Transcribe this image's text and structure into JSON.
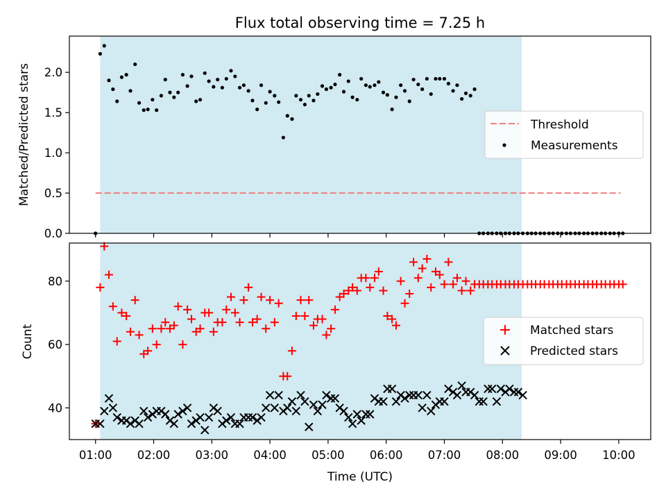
{
  "chart_data": [
    {
      "type": "scatter",
      "title": "Flux total observing time = 7.25 h",
      "xlabel": "",
      "ylabel": "Matched/Predicted stars",
      "ylim": [
        0,
        2.45
      ],
      "yticks": [
        "0.0",
        "0.5",
        "1.0",
        "1.5",
        "2.0"
      ],
      "ytick_values": [
        0,
        0.5,
        1.0,
        1.5,
        2.0
      ],
      "shaded_span_hours": [
        1.08,
        8.33
      ],
      "shade_color": "#add8e6",
      "threshold": {
        "name": "Threshold",
        "value": 0.5,
        "x_range": [
          1.0,
          10.03
        ],
        "color": "#f08080"
      },
      "legend": {
        "placement": "center-right",
        "entries": [
          "Threshold",
          "Measurements"
        ]
      },
      "series": [
        {
          "name": "Measurements",
          "color": "#000000",
          "x": [
            1.0,
            1.08,
            1.15,
            1.23,
            1.3,
            1.37,
            1.45,
            1.53,
            1.6,
            1.68,
            1.75,
            1.83,
            1.9,
            1.98,
            2.05,
            2.13,
            2.2,
            2.28,
            2.35,
            2.42,
            2.5,
            2.58,
            2.65,
            2.73,
            2.8,
            2.88,
            2.95,
            3.03,
            3.1,
            3.18,
            3.25,
            3.33,
            3.4,
            3.48,
            3.55,
            3.63,
            3.7,
            3.78,
            3.85,
            3.93,
            4.0,
            4.08,
            4.15,
            4.23,
            4.3,
            4.38,
            4.45,
            4.53,
            4.6,
            4.67,
            4.75,
            4.82,
            4.9,
            4.97,
            5.05,
            5.12,
            5.2,
            5.27,
            5.35,
            5.42,
            5.5,
            5.57,
            5.65,
            5.72,
            5.8,
            5.87,
            5.95,
            6.02,
            6.1,
            6.17,
            6.25,
            6.32,
            6.4,
            6.47,
            6.55,
            6.62,
            6.7,
            6.77,
            6.85,
            6.92,
            7.0,
            7.07,
            7.15,
            7.22,
            7.3,
            7.37,
            7.45,
            7.52,
            7.6,
            7.67,
            7.75,
            7.82,
            7.9,
            7.97,
            8.05,
            8.12,
            8.2,
            8.27,
            8.35,
            8.43,
            8.5,
            8.57,
            8.65,
            8.72,
            8.8,
            8.87,
            8.95,
            9.02,
            9.1,
            9.17,
            9.25,
            9.32,
            9.4,
            9.47,
            9.55,
            9.62,
            9.7,
            9.77,
            9.85,
            9.92,
            10.0,
            10.07
          ],
          "values": [
            0.0,
            2.23,
            2.33,
            1.9,
            1.79,
            1.64,
            1.94,
            1.97,
            1.77,
            2.1,
            1.62,
            1.53,
            1.54,
            1.66,
            1.53,
            1.71,
            1.91,
            1.75,
            1.69,
            1.75,
            1.97,
            1.83,
            1.95,
            1.64,
            1.66,
            1.99,
            1.89,
            1.82,
            1.91,
            1.81,
            1.92,
            2.02,
            1.95,
            1.81,
            1.84,
            1.77,
            1.65,
            1.54,
            1.84,
            1.62,
            1.76,
            1.71,
            1.63,
            1.19,
            1.46,
            1.42,
            1.71,
            1.66,
            1.6,
            1.71,
            1.65,
            1.73,
            1.83,
            1.79,
            1.81,
            1.85,
            1.97,
            1.76,
            1.89,
            1.69,
            1.66,
            1.92,
            1.84,
            1.82,
            1.84,
            1.88,
            1.75,
            1.72,
            1.54,
            1.69,
            1.84,
            1.77,
            1.64,
            1.91,
            1.85,
            1.79,
            1.92,
            1.73,
            1.92,
            1.92,
            1.92,
            1.86,
            1.77,
            1.84,
            1.67,
            1.74,
            1.71,
            1.79,
            0.0,
            0.0,
            0.0,
            0.0,
            0.0,
            0.0,
            0.0,
            0.0,
            0.0,
            0.0,
            0.0,
            0.0,
            0.0,
            0.0,
            0.0,
            0.0,
            0.0,
            0.0,
            0.0,
            0.0,
            0.0,
            0.0,
            0.0,
            0.0,
            0.0,
            0.0,
            0.0,
            0.0,
            0.0,
            0.0,
            0.0,
            0.0,
            0.0,
            0.0
          ]
        }
      ]
    },
    {
      "type": "scatter",
      "title": "",
      "xlabel": "Time (UTC)",
      "ylabel": "Count",
      "ylim": [
        30,
        92
      ],
      "xlim": [
        0.55,
        10.55
      ],
      "yticks": [
        "40",
        "60",
        "80"
      ],
      "ytick_values": [
        40,
        60,
        80
      ],
      "xticks": [
        "01:00",
        "02:00",
        "03:00",
        "04:00",
        "05:00",
        "06:00",
        "07:00",
        "08:00",
        "09:00",
        "10:00"
      ],
      "xtick_values": [
        1,
        2,
        3,
        4,
        5,
        6,
        7,
        8,
        9,
        10
      ],
      "shaded_span_hours": [
        1.08,
        8.33
      ],
      "shade_color": "#add8e6",
      "legend": {
        "placement": "center-right",
        "entries": [
          "Matched stars",
          "Predicted stars"
        ]
      },
      "series": [
        {
          "name": "Matched stars",
          "marker": "plus",
          "color": "#ff0000",
          "x": [
            1.0,
            1.08,
            1.15,
            1.23,
            1.3,
            1.37,
            1.45,
            1.53,
            1.6,
            1.68,
            1.75,
            1.83,
            1.9,
            1.98,
            2.05,
            2.13,
            2.2,
            2.28,
            2.35,
            2.42,
            2.5,
            2.58,
            2.65,
            2.73,
            2.8,
            2.88,
            2.95,
            3.03,
            3.1,
            3.18,
            3.25,
            3.33,
            3.4,
            3.48,
            3.55,
            3.63,
            3.7,
            3.78,
            3.85,
            3.93,
            4.0,
            4.08,
            4.15,
            4.23,
            4.3,
            4.38,
            4.45,
            4.53,
            4.6,
            4.67,
            4.75,
            4.82,
            4.9,
            4.97,
            5.05,
            5.12,
            5.2,
            5.27,
            5.35,
            5.42,
            5.5,
            5.57,
            5.65,
            5.72,
            5.8,
            5.87,
            5.95,
            6.02,
            6.1,
            6.17,
            6.25,
            6.32,
            6.4,
            6.47,
            6.55,
            6.62,
            6.7,
            6.77,
            6.85,
            6.92,
            7.0,
            7.07,
            7.15,
            7.22,
            7.3,
            7.37,
            7.45,
            7.52,
            7.6,
            7.67,
            7.75,
            7.82,
            7.9,
            7.97,
            8.05,
            8.12,
            8.2,
            8.27,
            8.35,
            8.43,
            8.5,
            8.57,
            8.65,
            8.72,
            8.8,
            8.87,
            8.95,
            9.02,
            9.1,
            9.17,
            9.25,
            9.32,
            9.4,
            9.47,
            9.55,
            9.62,
            9.7,
            9.77,
            9.85,
            9.92,
            10.0,
            10.07
          ],
          "values": [
            35,
            78,
            91,
            82,
            72,
            61,
            70,
            69,
            64,
            74,
            63,
            57,
            58,
            65,
            60,
            65,
            67,
            65,
            66,
            72,
            60,
            71,
            68,
            64,
            65,
            70,
            70,
            64,
            67,
            67,
            71,
            75,
            70,
            67,
            74,
            78,
            67,
            68,
            75,
            65,
            74,
            67,
            73,
            50,
            50,
            58,
            69,
            74,
            69,
            74,
            66,
            68,
            68,
            63,
            65,
            71,
            75,
            76,
            77,
            78,
            77,
            81,
            81,
            78,
            81,
            83,
            77,
            69,
            68,
            66,
            80,
            73,
            76,
            86,
            81,
            84,
            87,
            78,
            83,
            82,
            79,
            86,
            79,
            81,
            77,
            80,
            77,
            79,
            79,
            79,
            79,
            79,
            79,
            79,
            79,
            79,
            79,
            79,
            79,
            79,
            79,
            79,
            79,
            79,
            79,
            79,
            79,
            79,
            79,
            79,
            79,
            79,
            79,
            79,
            79,
            79,
            79,
            79,
            79,
            79,
            79,
            79
          ]
        },
        {
          "name": "Predicted stars",
          "marker": "x",
          "color": "#000000",
          "x": [
            1.0,
            1.08,
            1.15,
            1.23,
            1.3,
            1.37,
            1.45,
            1.53,
            1.6,
            1.68,
            1.75,
            1.83,
            1.9,
            1.98,
            2.05,
            2.13,
            2.2,
            2.28,
            2.35,
            2.42,
            2.5,
            2.58,
            2.65,
            2.73,
            2.8,
            2.88,
            2.95,
            3.03,
            3.1,
            3.18,
            3.25,
            3.33,
            3.4,
            3.48,
            3.55,
            3.63,
            3.7,
            3.78,
            3.85,
            3.93,
            4.0,
            4.08,
            4.15,
            4.23,
            4.3,
            4.38,
            4.45,
            4.53,
            4.6,
            4.67,
            4.75,
            4.82,
            4.9,
            4.97,
            5.05,
            5.12,
            5.2,
            5.27,
            5.35,
            5.42,
            5.5,
            5.57,
            5.65,
            5.72,
            5.8,
            5.87,
            5.95,
            6.02,
            6.1,
            6.17,
            6.25,
            6.32,
            6.4,
            6.47,
            6.55,
            6.62,
            6.7,
            6.77,
            6.85,
            6.92,
            7.0,
            7.07,
            7.15,
            7.22,
            7.3,
            7.37,
            7.45,
            7.52,
            7.6,
            7.67,
            7.75,
            7.82,
            7.9,
            7.97,
            8.05,
            8.12,
            8.2,
            8.27,
            8.35
          ],
          "values": [
            35,
            35,
            39,
            43,
            40,
            37,
            36,
            36,
            35,
            36,
            35,
            39,
            37,
            38,
            39,
            39,
            38,
            36,
            35,
            38,
            39,
            40,
            35,
            36,
            37,
            33,
            37,
            40,
            39,
            35,
            36,
            37,
            35,
            35,
            37,
            37,
            37,
            36,
            37,
            40,
            44,
            40,
            44,
            39,
            40,
            42,
            39,
            44,
            42,
            34,
            41,
            39,
            41,
            44,
            43,
            43,
            40,
            39,
            37,
            35,
            38,
            36,
            38,
            38,
            43,
            42,
            42,
            46,
            46,
            42,
            44,
            43,
            44,
            44,
            44,
            40,
            44,
            39,
            41,
            42,
            42,
            46,
            45,
            44,
            47,
            45,
            45,
            44,
            42,
            42,
            46,
            46,
            42,
            46,
            45,
            46,
            45,
            45,
            44
          ]
        }
      ]
    }
  ]
}
